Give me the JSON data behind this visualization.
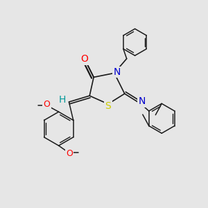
{
  "bg_color": "#e6e6e6",
  "bond_color": "#1a1a1a",
  "colors": {
    "O": "#ff0000",
    "N": "#0000cc",
    "S": "#cccc00",
    "H": "#009999",
    "C": "#1a1a1a"
  }
}
